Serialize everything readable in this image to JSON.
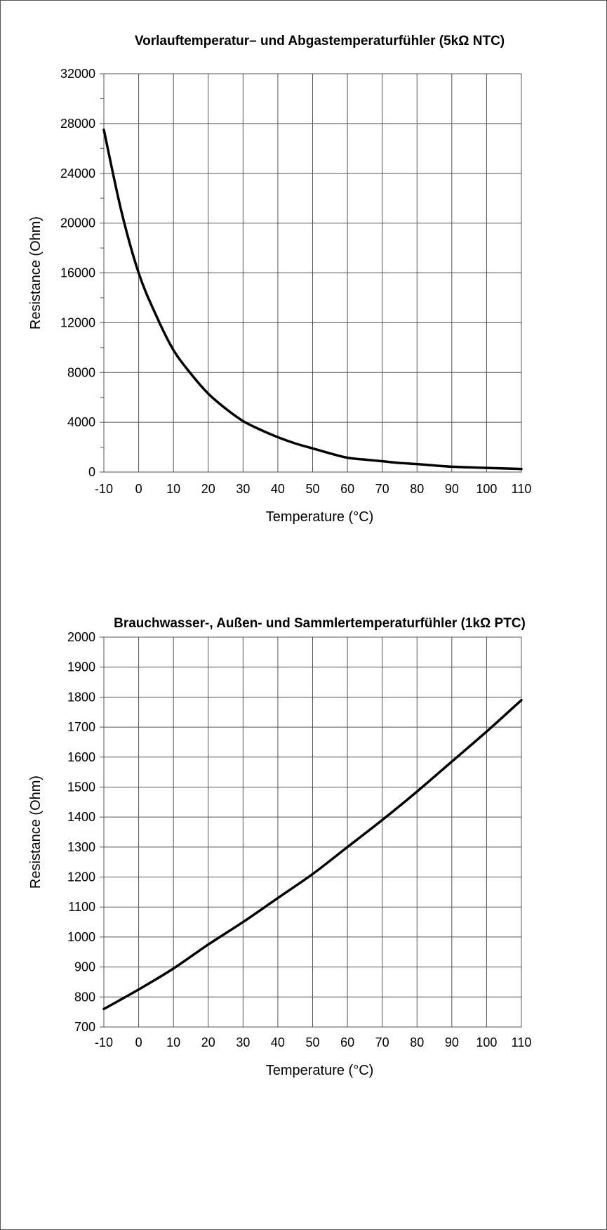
{
  "chart_data": [
    {
      "type": "line",
      "title": "Vorlauftemperatur– und Abgastemperaturfühler (5kΩ NTC)",
      "xlabel": "Temperature (°C)",
      "ylabel": "Resistance (Ohm)",
      "xlim": [
        -10,
        110
      ],
      "ylim": [
        0,
        32000
      ],
      "x_ticks": [
        -10,
        0,
        10,
        20,
        30,
        40,
        50,
        60,
        70,
        80,
        90,
        100,
        110
      ],
      "y_ticks": [
        0,
        4000,
        8000,
        12000,
        16000,
        20000,
        24000,
        28000,
        32000
      ],
      "grid": true,
      "series": [
        {
          "x": [
            -10,
            -5,
            0,
            5,
            10,
            15,
            20,
            25,
            30,
            35,
            40,
            45,
            50,
            55,
            60,
            65,
            70,
            75,
            80,
            85,
            90,
            95,
            100,
            105,
            110
          ],
          "y": [
            27500,
            21000,
            16000,
            12600,
            9800,
            7900,
            6300,
            5100,
            4100,
            3400,
            2800,
            2300,
            1900,
            1500,
            1150,
            1000,
            870,
            730,
            640,
            530,
            430,
            380,
            330,
            290,
            250
          ]
        }
      ]
    },
    {
      "type": "line",
      "title": "Brauchwasser-, Außen- und Sammlertemperaturfühler (1kΩ PTC)",
      "xlabel": "Temperature (°C)",
      "ylabel": "Resistance (Ohm)",
      "xlim": [
        -10,
        110
      ],
      "ylim": [
        700,
        2000
      ],
      "x_ticks": [
        -10,
        0,
        10,
        20,
        30,
        40,
        50,
        60,
        70,
        80,
        90,
        100,
        110
      ],
      "y_ticks": [
        700,
        800,
        900,
        1000,
        1100,
        1200,
        1300,
        1400,
        1500,
        1600,
        1700,
        1800,
        1900,
        2000
      ],
      "grid": true,
      "series": [
        {
          "x": [
            -10,
            0,
            10,
            20,
            30,
            40,
            50,
            60,
            70,
            80,
            90,
            100,
            110
          ],
          "y": [
            760,
            825,
            895,
            975,
            1050,
            1130,
            1210,
            1300,
            1390,
            1485,
            1585,
            1685,
            1790
          ]
        }
      ]
    }
  ]
}
